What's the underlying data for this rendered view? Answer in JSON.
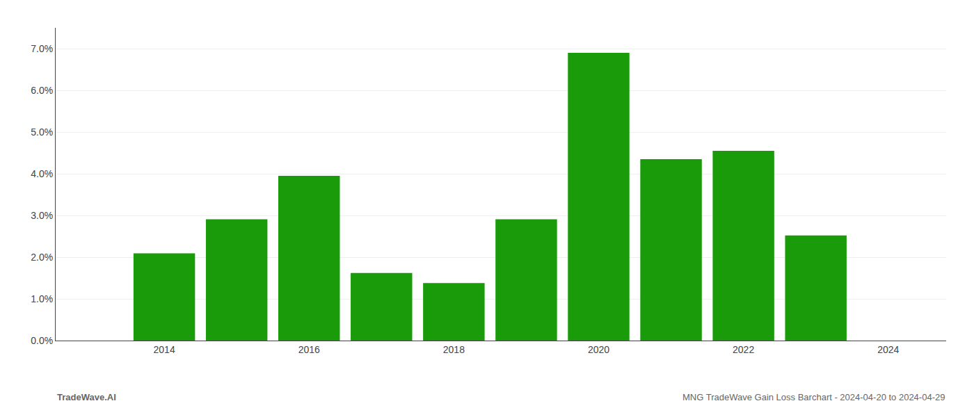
{
  "chart_data": {
    "type": "bar",
    "x": [
      2014,
      2015,
      2016,
      2017,
      2018,
      2019,
      2020,
      2021,
      2022,
      2023
    ],
    "values": [
      0.0209,
      0.0291,
      0.0395,
      0.0162,
      0.0138,
      0.0291,
      0.069,
      0.0435,
      0.0455,
      0.0252
    ],
    "color": "#1a9c0a",
    "xlim": [
      2012.5,
      2024.8
    ],
    "xticks": [
      2014,
      2016,
      2018,
      2020,
      2022,
      2024
    ],
    "ylim": [
      0.0,
      0.075
    ],
    "yticks": [
      {
        "value": 0.0,
        "label": "0.0%"
      },
      {
        "value": 0.01,
        "label": "1.0%"
      },
      {
        "value": 0.02,
        "label": "2.0%"
      },
      {
        "value": 0.03,
        "label": "3.0%"
      },
      {
        "value": 0.04,
        "label": "4.0%"
      },
      {
        "value": 0.05,
        "label": "5.0%"
      },
      {
        "value": 0.06,
        "label": "6.0%"
      },
      {
        "value": 0.07,
        "label": "7.0%"
      }
    ],
    "grid": true,
    "annotations": [
      "TradeWave.AI",
      "MNG TradeWave Gain Loss Barchart - 2024-04-20 to 2024-04-29"
    ]
  }
}
